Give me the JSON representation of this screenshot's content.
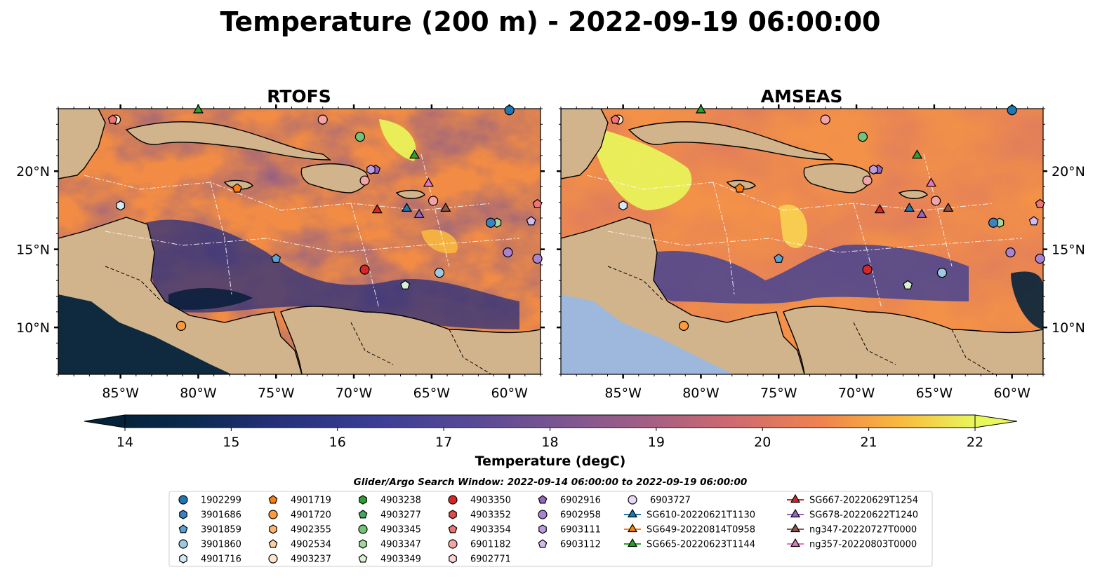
{
  "title": "Temperature (200 m) - 2022-09-19 06:00:00",
  "panels": [
    {
      "title": "RTOFS",
      "hue": 0.55
    },
    {
      "title": "AMSEAS",
      "hue": 0.72
    }
  ],
  "axes": {
    "x_ticks": [
      "85°W",
      "80°W",
      "75°W",
      "70°W",
      "65°W",
      "60°W"
    ],
    "x_tick_values": [
      -85,
      -80,
      -75,
      -70,
      -65,
      -60
    ],
    "y_ticks": [
      "20°N",
      "15°N",
      "10°N"
    ],
    "y_tick_values": [
      20,
      15,
      10
    ],
    "lon_range": [
      -89,
      -58
    ],
    "lat_range": [
      7,
      24
    ]
  },
  "colorbar": {
    "label": "Temperature (degC)",
    "ticks": [
      "14",
      "15",
      "16",
      "17",
      "18",
      "19",
      "20",
      "21",
      "22"
    ],
    "range": [
      14,
      22
    ],
    "extend": "both",
    "colormap": "thermal"
  },
  "legend": {
    "title": "Glider/Argo Search Window: 2022-09-14 06:00:00 to 2022-09-19 06:00:00",
    "columns": [
      [
        {
          "label": "1902299",
          "marker": "circle",
          "color": "#1f77b4"
        },
        {
          "label": "3901686",
          "marker": "hexagon",
          "color": "#3b83c2"
        },
        {
          "label": "3901859",
          "marker": "pentagon",
          "color": "#5aa1d8"
        },
        {
          "label": "3901860",
          "marker": "circle",
          "color": "#9ecae1"
        },
        {
          "label": "4901716",
          "marker": "hexagon",
          "color": "#d4e8f6"
        }
      ],
      [
        {
          "label": "4901719",
          "marker": "pentagon",
          "color": "#ff7f0e"
        },
        {
          "label": "4901720",
          "marker": "circle",
          "color": "#fd9a3d"
        },
        {
          "label": "4902355",
          "marker": "hexagon",
          "color": "#fdb56b"
        },
        {
          "label": "4902534",
          "marker": "pentagon",
          "color": "#fdd0a2"
        },
        {
          "label": "4903237",
          "marker": "circle",
          "color": "#fee6ce"
        }
      ],
      [
        {
          "label": "4903238",
          "marker": "hexagon",
          "color": "#2ca02c"
        },
        {
          "label": "4903277",
          "marker": "pentagon",
          "color": "#41ab5d"
        },
        {
          "label": "4903345",
          "marker": "circle",
          "color": "#74c476"
        },
        {
          "label": "4903347",
          "marker": "hexagon",
          "color": "#a1d99b"
        },
        {
          "label": "4903349",
          "marker": "pentagon",
          "color": "#d9f0d3"
        }
      ],
      [
        {
          "label": "4903350",
          "marker": "circle",
          "color": "#d62728"
        },
        {
          "label": "4903352",
          "marker": "hexagon",
          "color": "#e34a4a"
        },
        {
          "label": "4903354",
          "marker": "pentagon",
          "color": "#f07474"
        },
        {
          "label": "6901182",
          "marker": "circle",
          "color": "#f4a4a4"
        },
        {
          "label": "6902771",
          "marker": "hexagon",
          "color": "#fcd4d4"
        }
      ],
      [
        {
          "label": "6902916",
          "marker": "pentagon",
          "color": "#9467bd"
        },
        {
          "label": "6902958",
          "marker": "circle",
          "color": "#a983d0"
        },
        {
          "label": "6903111",
          "marker": "hexagon",
          "color": "#bc9ee0"
        },
        {
          "label": "6903112",
          "marker": "pentagon",
          "color": "#d1bbef"
        }
      ],
      [
        {
          "label": "6903727",
          "marker": "circle",
          "color": "#e8d9f7"
        },
        {
          "label": "SG610-20220621T1130",
          "marker": "triangle",
          "color": "#1f77b4"
        },
        {
          "label": "SG649-20220814T0958",
          "marker": "triangle",
          "color": "#ff7f0e"
        },
        {
          "label": "SG665-20220623T1144",
          "marker": "triangle",
          "color": "#2ca02c"
        }
      ],
      [
        {
          "label": "SG667-20220629T1254",
          "marker": "triangle",
          "color": "#d62728"
        },
        {
          "label": "SG678-20220622T1240",
          "marker": "triangle",
          "color": "#9467bd"
        },
        {
          "label": "ng347-20220727T0000",
          "marker": "triangle",
          "color": "#8c564b"
        },
        {
          "label": "ng357-20220803T0000",
          "marker": "triangle",
          "color": "#e377c2"
        }
      ]
    ]
  },
  "observations": [
    {
      "lon": -85.3,
      "lat": 23.3,
      "marker": "circle",
      "color": "#fee6ce"
    },
    {
      "lon": -85.5,
      "lat": 23.3,
      "marker": "pentagon",
      "color": "#f07474"
    },
    {
      "lon": -72.0,
      "lat": 23.3,
      "marker": "circle",
      "color": "#f4a4a4"
    },
    {
      "lon": -69.6,
      "lat": 22.2,
      "marker": "circle",
      "color": "#74c476"
    },
    {
      "lon": -66.1,
      "lat": 21.0,
      "marker": "triangle",
      "color": "#2ca02c"
    },
    {
      "lon": -68.6,
      "lat": 20.1,
      "marker": "pentagon",
      "color": "#9467bd"
    },
    {
      "lon": -68.9,
      "lat": 20.1,
      "marker": "hexagon",
      "color": "#bc9ee0"
    },
    {
      "lon": -77.5,
      "lat": 18.9,
      "marker": "pentagon",
      "color": "#ff7f0e"
    },
    {
      "lon": -69.3,
      "lat": 19.4,
      "marker": "circle",
      "color": "#f4a4a4"
    },
    {
      "lon": -65.2,
      "lat": 19.2,
      "marker": "triangle",
      "color": "#e377c2"
    },
    {
      "lon": -85.0,
      "lat": 17.8,
      "marker": "hexagon",
      "color": "#d4e8f6"
    },
    {
      "lon": -68.5,
      "lat": 17.5,
      "marker": "triangle",
      "color": "#d62728"
    },
    {
      "lon": -66.6,
      "lat": 17.6,
      "marker": "triangle",
      "color": "#1f77b4"
    },
    {
      "lon": -65.8,
      "lat": 17.2,
      "marker": "triangle",
      "color": "#9467bd"
    },
    {
      "lon": -64.9,
      "lat": 18.1,
      "marker": "circle",
      "color": "#f4a4a4"
    },
    {
      "lon": -64.1,
      "lat": 17.6,
      "marker": "triangle",
      "color": "#8c564b"
    },
    {
      "lon": -58.2,
      "lat": 17.9,
      "marker": "pentagon",
      "color": "#f07474"
    },
    {
      "lon": -60.8,
      "lat": 16.7,
      "marker": "hexagon",
      "color": "#a1d99b"
    },
    {
      "lon": -61.2,
      "lat": 16.7,
      "marker": "circle",
      "color": "#3b83c2"
    },
    {
      "lon": -58.6,
      "lat": 16.8,
      "marker": "pentagon",
      "color": "#d1bbef"
    },
    {
      "lon": -75.0,
      "lat": 14.4,
      "marker": "pentagon",
      "color": "#5aa1d8"
    },
    {
      "lon": -69.3,
      "lat": 13.7,
      "marker": "circle",
      "color": "#d62728"
    },
    {
      "lon": -64.5,
      "lat": 13.5,
      "marker": "circle",
      "color": "#9ecae1"
    },
    {
      "lon": -66.7,
      "lat": 12.7,
      "marker": "pentagon",
      "color": "#d9f0d3"
    },
    {
      "lon": -60.1,
      "lat": 14.8,
      "marker": "circle",
      "color": "#a983d0"
    },
    {
      "lon": -58.2,
      "lat": 14.4,
      "marker": "circle",
      "color": "#a983d0"
    },
    {
      "lon": -81.1,
      "lat": 10.1,
      "marker": "circle",
      "color": "#fd9a3d"
    },
    {
      "lon": -60.0,
      "lat": 23.9,
      "marker": "circle",
      "color": "#1f77b4"
    },
    {
      "lon": -80.0,
      "lat": 23.9,
      "marker": "triangle",
      "color": "#2ca02c"
    }
  ]
}
